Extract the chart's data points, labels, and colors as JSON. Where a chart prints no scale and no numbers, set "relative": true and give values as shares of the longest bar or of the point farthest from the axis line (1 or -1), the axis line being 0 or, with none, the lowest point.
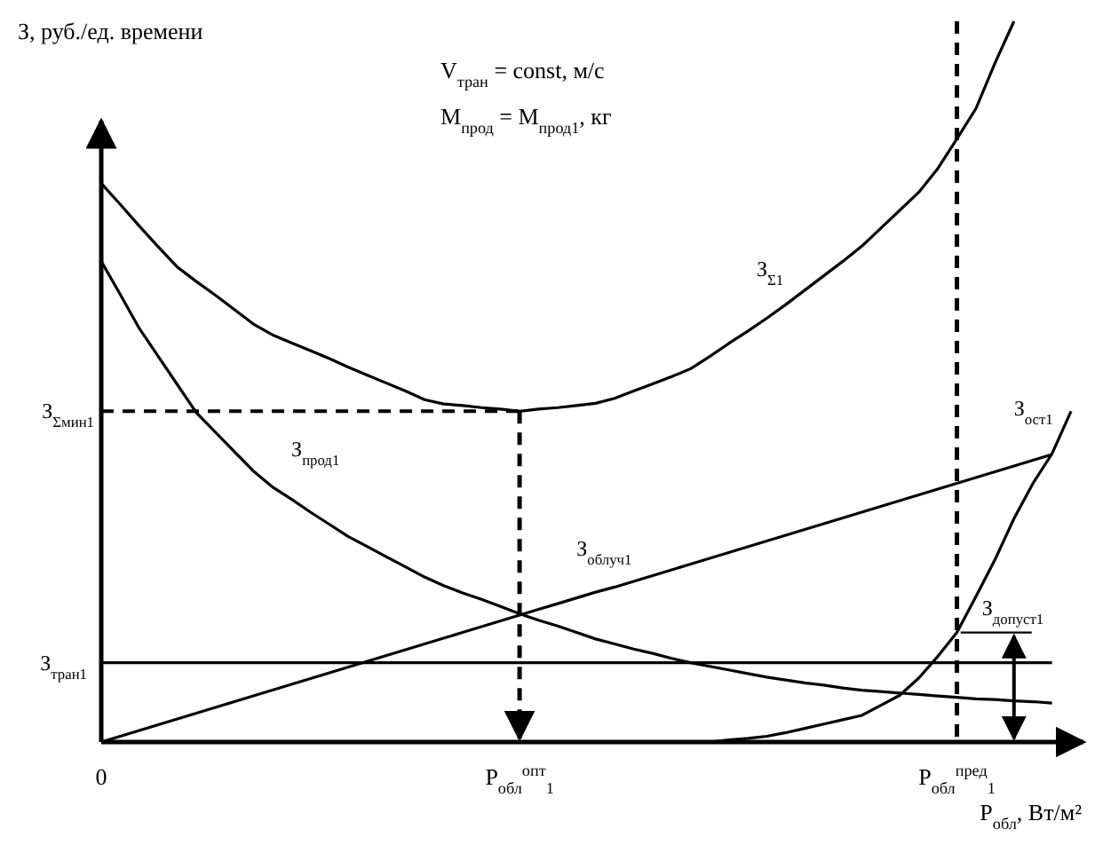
{
  "chart_data": {
    "type": "line",
    "relative": true,
    "ylabel": "З, руб./ед. времени",
    "xlabel": "P$_{обл}$, Вт/м²",
    "categories": [
      "0",
      null,
      null,
      null,
      null,
      null,
      null,
      null,
      null,
      null,
      null,
      null,
      null,
      null,
      null,
      null,
      null,
      null,
      null,
      null,
      null,
      null,
      "P$_{обл}$$^{опт}$$_{1}$",
      null,
      null,
      null,
      null,
      null,
      null,
      null,
      null,
      null,
      null,
      null,
      null,
      null,
      null,
      null,
      null,
      null,
      null,
      null,
      null,
      null,
      null,
      "P$_{обл}$$^{пред}$$_{1}$",
      null,
      null,
      null,
      null,
      null,
      null
    ],
    "tick_labels": "x",
    "line_style": "solid",
    "marker": "none",
    "series": [
      {
        "name": "З$_{Σ1}$",
        "color": "#000000",
        "values": [
          0.775,
          0.746,
          0.716,
          0.687,
          0.659,
          0.639,
          0.62,
          0.6,
          0.58,
          0.565,
          0.554,
          0.543,
          0.532,
          0.52,
          0.509,
          0.498,
          0.487,
          0.475,
          0.469,
          0.467,
          0.464,
          0.462,
          0.459,
          0.462,
          0.464,
          0.467,
          0.47,
          0.477,
          0.487,
          0.497,
          0.507,
          0.518,
          0.535,
          0.553,
          0.57,
          0.588,
          0.607,
          0.627,
          0.647,
          0.667,
          0.688,
          0.713,
          0.738,
          0.763,
          0.796,
          0.837,
          0.879,
          0.942,
          1,
          null,
          null,
          null
        ]
      },
      {
        "name": "З$_{прод1}$",
        "color": "#000000",
        "values": [
          0.667,
          0.621,
          0.574,
          0.535,
          0.496,
          0.457,
          0.43,
          0.403,
          0.376,
          0.354,
          0.337,
          0.319,
          0.302,
          0.285,
          0.271,
          0.257,
          0.243,
          0.229,
          0.217,
          0.207,
          0.198,
          0.188,
          0.178,
          0.169,
          0.161,
          0.152,
          0.143,
          0.136,
          0.129,
          0.123,
          0.116,
          0.11,
          0.105,
          0.1,
          0.095,
          0.09,
          0.086,
          0.082,
          0.079,
          0.075,
          0.072,
          0.07,
          0.068,
          0.066,
          0.064,
          0.062,
          0.06,
          0.059,
          0.057,
          0.056,
          0.054,
          null
        ]
      },
      {
        "name": "З$_{облуч1}$",
        "color": "#000000",
        "values": [
          0,
          0.008,
          0.016,
          0.024,
          0.032,
          0.04,
          0.048,
          0.056,
          0.064,
          0.072,
          0.08,
          0.088,
          0.096,
          0.104,
          0.112,
          0.12,
          0.128,
          0.136,
          0.144,
          0.152,
          0.16,
          0.168,
          0.176,
          0.184,
          0.192,
          0.2,
          0.208,
          0.215,
          0.223,
          0.231,
          0.239,
          0.247,
          0.255,
          0.263,
          0.271,
          0.279,
          0.287,
          0.295,
          0.303,
          0.311,
          0.319,
          0.327,
          0.335,
          0.343,
          0.351,
          0.359,
          0.367,
          0.375,
          0.383,
          0.391,
          0.399,
          null
        ]
      },
      {
        "name": "З$_{ост1}$",
        "color": "#000000",
        "values": [
          null,
          null,
          null,
          null,
          null,
          null,
          null,
          null,
          null,
          null,
          null,
          null,
          null,
          null,
          null,
          null,
          null,
          null,
          null,
          null,
          null,
          null,
          null,
          null,
          null,
          null,
          null,
          null,
          null,
          null,
          null,
          null,
          0,
          0.003,
          0.005,
          0.008,
          0.013,
          0.019,
          0.025,
          0.031,
          0.037,
          0.051,
          0.065,
          0.089,
          0.119,
          0.152,
          0.202,
          0.253,
          0.31,
          0.359,
          0.4,
          0.459
        ]
      },
      {
        "name": "З$_{тран1}$",
        "color": "#000000",
        "values": [
          0.11,
          0.11,
          0.11,
          0.11,
          0.11,
          0.11,
          0.11,
          0.11,
          0.11,
          0.11,
          0.11,
          0.11,
          0.11,
          0.11,
          0.11,
          0.11,
          0.11,
          0.11,
          0.11,
          0.11,
          0.11,
          0.11,
          0.11,
          0.11,
          0.11,
          0.11,
          0.11,
          0.11,
          0.11,
          0.11,
          0.11,
          0.11,
          0.11,
          0.11,
          0.11,
          0.11,
          0.11,
          0.11,
          0.11,
          0.11,
          0.11,
          0.11,
          0.11,
          0.11,
          0.11,
          0.11,
          0.11,
          0.11,
          0.11,
          0.11,
          0.11,
          null
        ]
      }
    ],
    "ref_lines": [
      {
        "axis": "x",
        "value": "P$_{обл}$$^{опт}$$_{1}$",
        "line_style": "dashed",
        "color": "#000000"
      },
      {
        "axis": "x",
        "value": "P$_{обл}$$^{пред}$$_{1}$",
        "line_style": "dashed",
        "color": "#000000"
      },
      {
        "axis": "y",
        "value": 0.459,
        "label": "З$_{Σмин1}$",
        "line_style": "dashed",
        "color": "#000000"
      }
    ],
    "annotations": [
      "V$_{тран}$ = const, м/с",
      "M$_{прод}$ = M$_{прод1}$, кг",
      "З$_{допуст1}$"
    ]
  }
}
